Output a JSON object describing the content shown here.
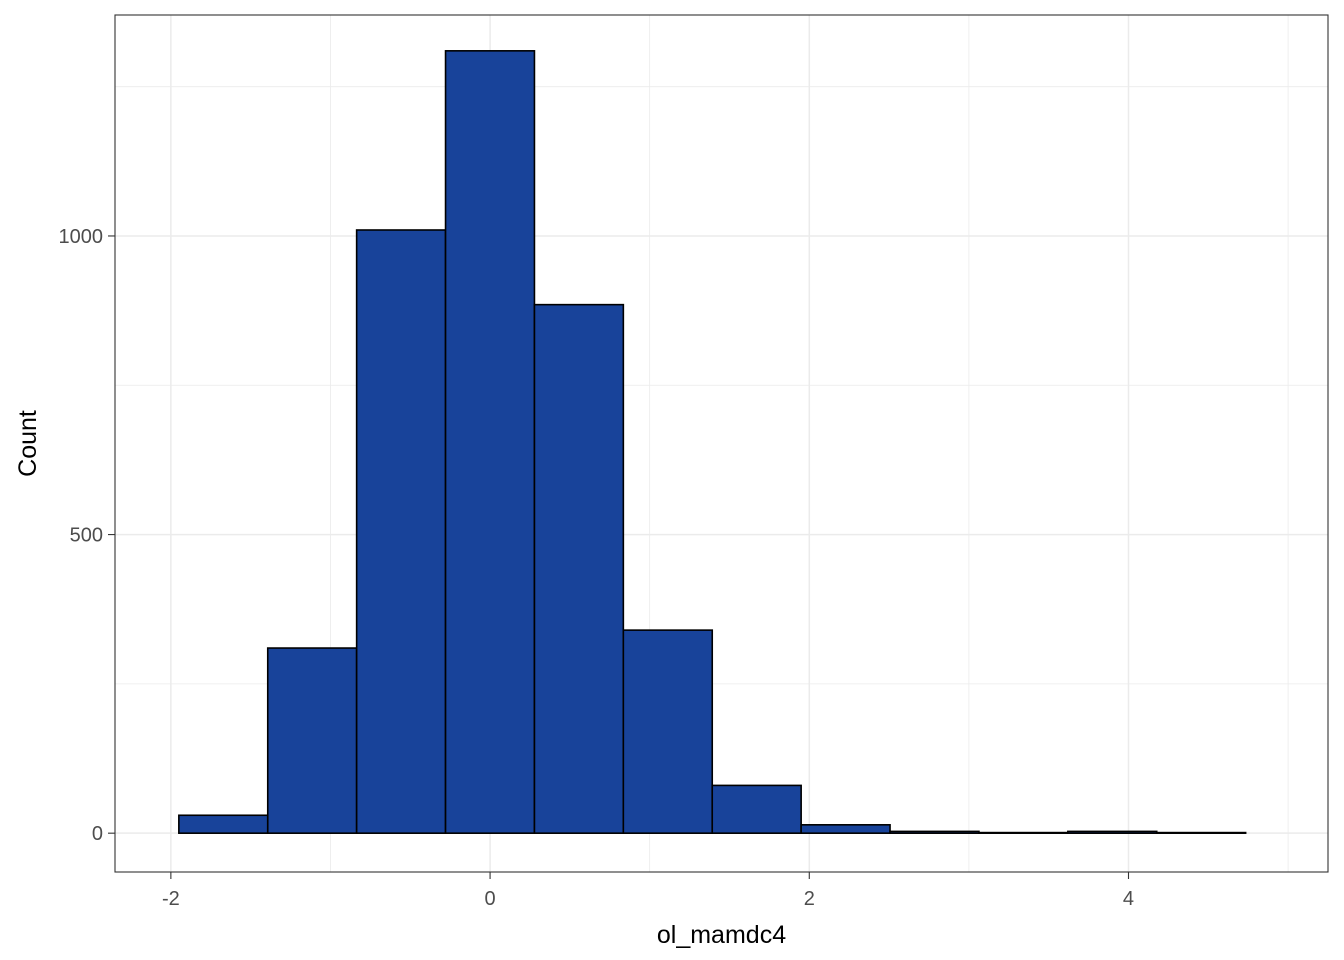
{
  "chart_data": {
    "type": "bar",
    "subtype": "histogram",
    "xlabel": "ol_mamdc4",
    "ylabel": "Count",
    "xlim": [
      -2.35,
      5.25
    ],
    "ylim": [
      -65,
      1370
    ],
    "x_ticks": [
      -2,
      0,
      2,
      4
    ],
    "x_tick_labels": [
      "-2",
      "0",
      "2",
      "4"
    ],
    "y_ticks": [
      0,
      500,
      1000
    ],
    "y_tick_labels": [
      "0",
      "500",
      "1000"
    ],
    "y_minor_ticks": [
      250,
      750,
      1250
    ],
    "x_minor_ticks": [
      -1,
      1,
      3,
      5
    ],
    "grid": true,
    "bin_edges": [
      -1.95,
      -1.393,
      -0.836,
      -0.279,
      0.278,
      0.835,
      1.392,
      1.949,
      2.506,
      3.063,
      3.62,
      4.177,
      4.734
    ],
    "counts": [
      30,
      310,
      1010,
      1310,
      885,
      340,
      80,
      14,
      3,
      1,
      3,
      1
    ],
    "fill_color": "#18439A",
    "edge_color": "#000000",
    "panel_border_color": "#333333",
    "grid_color": "#ebebeb"
  }
}
